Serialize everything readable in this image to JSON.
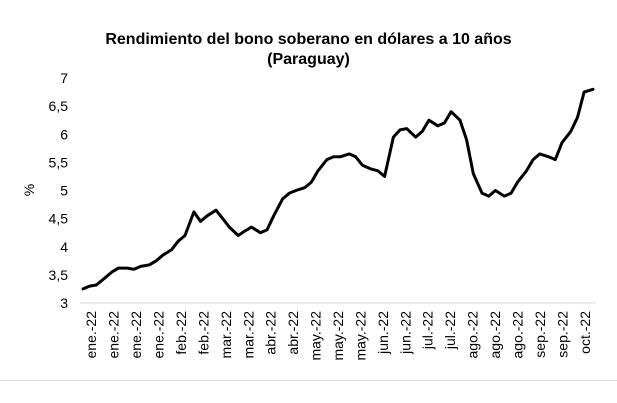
{
  "chart_data": {
    "type": "line",
    "title": "Rendimiento del bono soberano en dólares a 10 años",
    "subtitle": "(Paraguay)",
    "ylabel": "%",
    "xlabel": "",
    "ylim": [
      3,
      7
    ],
    "yticks": [
      "3",
      "3,5",
      "4",
      "4,5",
      "5",
      "5,5",
      "6",
      "6,5",
      "7"
    ],
    "xticks": [
      "ene.-22",
      "ene.-22",
      "ene.-22",
      "ene.-22",
      "feb.-22",
      "feb.-22",
      "mar.-22",
      "mar.-22",
      "abr.-22",
      "abr.-22",
      "may.-22",
      "may.-22",
      "may.-22",
      "jun.-22",
      "jun.-22",
      "jul.-22",
      "jul.-22",
      "ago.-22",
      "ago.-22",
      "ago.-22",
      "sep.-22",
      "sep.-22",
      "oct.-22"
    ],
    "grid": false,
    "line_color": "#000000",
    "series": [
      {
        "x": [
          0,
          0.3,
          0.6,
          1,
          1.3,
          1.6,
          2,
          2.3,
          2.6,
          3,
          3.3,
          3.6,
          4,
          4.3,
          4.6,
          5,
          5.3,
          5.6,
          6,
          6.3,
          6.6,
          7,
          7.3,
          7.6,
          8,
          8.3,
          8.6,
          9,
          9.3,
          9.6,
          10,
          10.3,
          10.6,
          11,
          11.3,
          11.6,
          12,
          12.3,
          12.6,
          13,
          13.3,
          13.6,
          14,
          14.3,
          14.6,
          15,
          15.3,
          15.6,
          16,
          16.3,
          16.6,
          17,
          17.3,
          17.6,
          18,
          18.3,
          18.6,
          19,
          19.3,
          19.6,
          20,
          20.3,
          20.6,
          21,
          21.3,
          21.6,
          22,
          22.3,
          22.6,
          23
        ],
        "values": [
          3.25,
          3.3,
          3.32,
          3.45,
          3.55,
          3.62,
          3.62,
          3.6,
          3.65,
          3.68,
          3.75,
          3.85,
          3.95,
          4.1,
          4.2,
          4.62,
          4.45,
          4.55,
          4.65,
          4.5,
          4.35,
          4.2,
          4.28,
          4.35,
          4.25,
          4.3,
          4.55,
          4.85,
          4.95,
          5.0,
          5.05,
          5.15,
          5.35,
          5.55,
          5.6,
          5.6,
          5.65,
          5.6,
          5.45,
          5.38,
          5.35,
          5.25,
          5.95,
          6.08,
          6.1,
          5.95,
          6.05,
          6.25,
          6.15,
          6.2,
          6.4,
          6.25,
          5.9,
          5.3,
          4.95,
          4.9,
          5.0,
          4.9,
          4.95,
          5.15,
          5.35,
          5.55,
          5.65,
          5.6,
          5.55,
          5.85,
          6.05,
          6.3,
          6.75,
          6.8
        ]
      }
    ]
  }
}
